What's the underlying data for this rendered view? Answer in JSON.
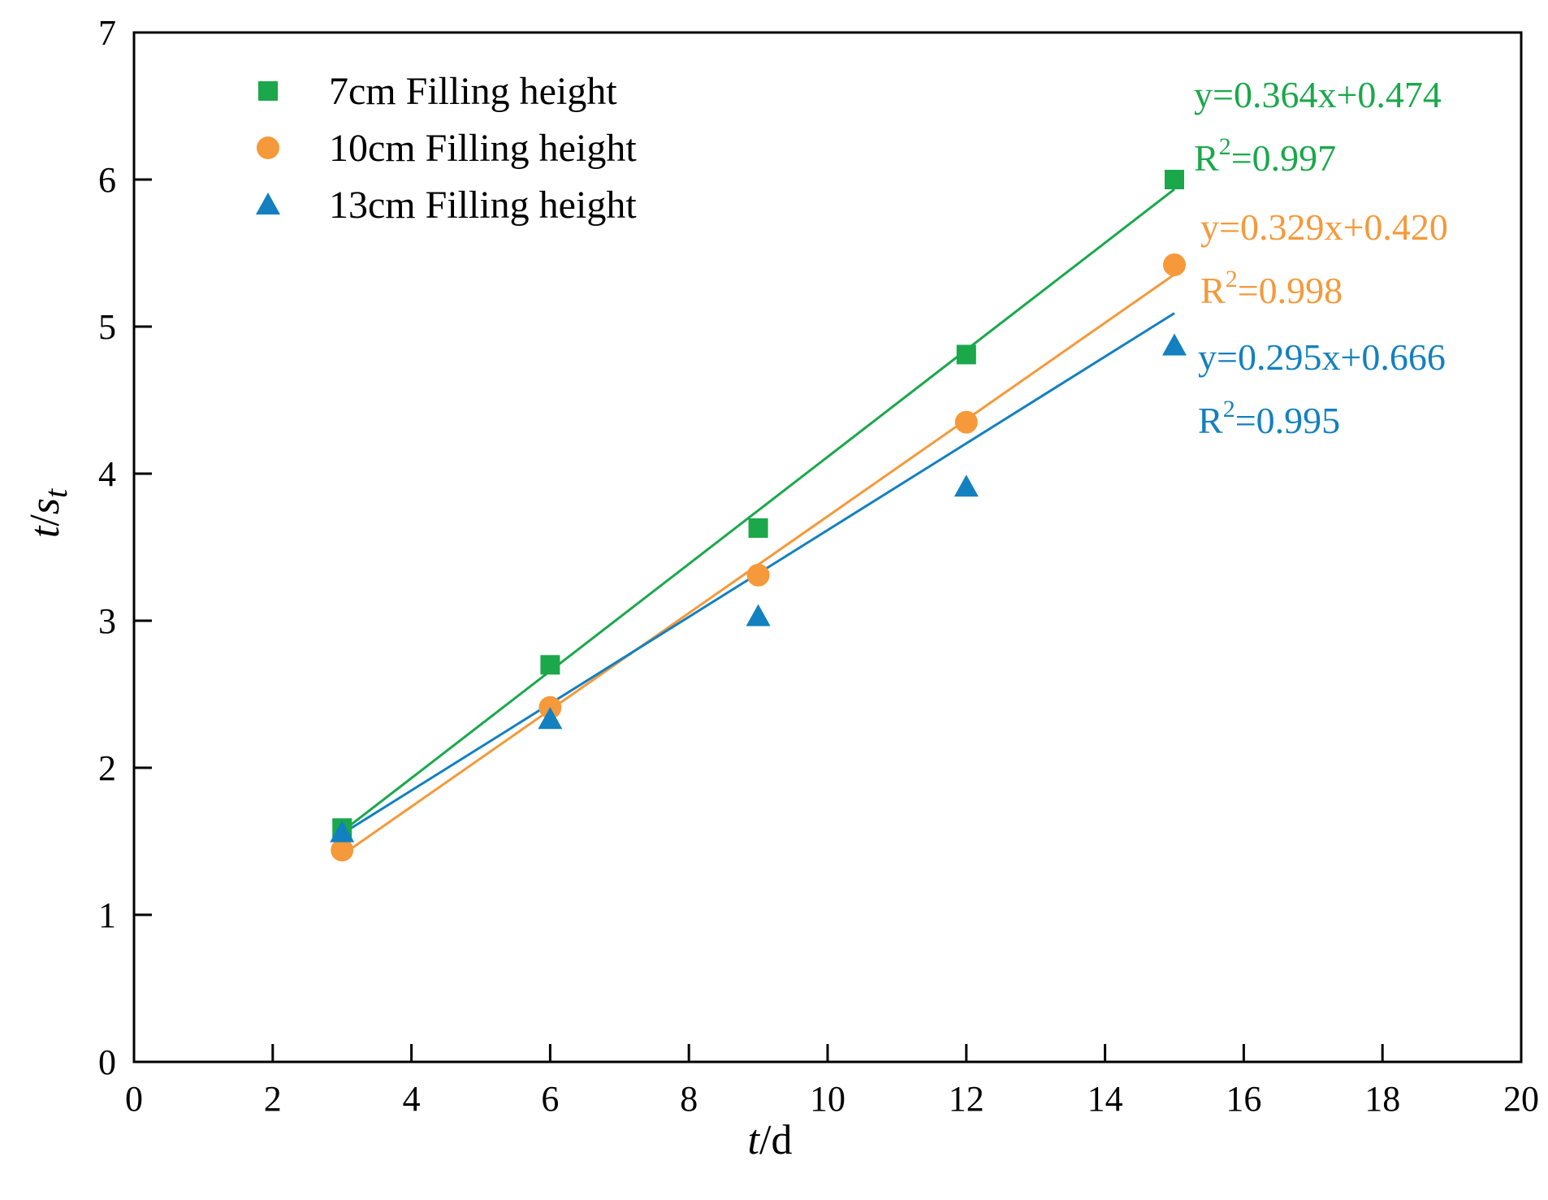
{
  "chart_data": {
    "type": "scatter",
    "title": "",
    "xlabel_italic": "t",
    "xlabel_rest": "/d",
    "ylabel_italic": "t",
    "ylabel_sep": "/",
    "ylabel_sym": "s",
    "ylabel_sub": "t",
    "xlim": [
      0,
      20
    ],
    "ylim": [
      0,
      7
    ],
    "xticks": [
      0,
      2,
      4,
      6,
      8,
      10,
      12,
      14,
      16,
      18,
      20
    ],
    "yticks": [
      0,
      1,
      2,
      3,
      4,
      5,
      6,
      7
    ],
    "grid": false,
    "legend_position": "top-left",
    "series": [
      {
        "name": "7cm Filling height",
        "marker": "square",
        "color": "#1aa84b",
        "x": [
          3,
          6,
          9,
          12,
          15
        ],
        "y": [
          1.59,
          2.7,
          3.63,
          4.81,
          6.0
        ],
        "fit": {
          "slope": 0.364,
          "intercept": 0.474,
          "x_range": [
            3,
            15
          ]
        },
        "equation": "y=0.364x+0.474",
        "r2_prefix": "R",
        "r2_exp": "2",
        "r2_value": "=0.997"
      },
      {
        "name": "10cm Filling height",
        "marker": "circle",
        "color": "#f5993a",
        "x": [
          3,
          6,
          9,
          12,
          15
        ],
        "y": [
          1.44,
          2.41,
          3.31,
          4.35,
          5.42
        ],
        "fit": {
          "slope": 0.329,
          "intercept": 0.42,
          "x_range": [
            3,
            15
          ]
        },
        "equation": "y=0.329x+0.420",
        "r2_prefix": "R",
        "r2_exp": "2",
        "r2_value": "=0.998"
      },
      {
        "name": "13cm Filling height",
        "marker": "triangle",
        "color": "#1380c0",
        "x": [
          3,
          6,
          9,
          12,
          15
        ],
        "y": [
          1.56,
          2.33,
          3.03,
          3.91,
          4.87
        ],
        "fit": {
          "slope": 0.295,
          "intercept": 0.666,
          "x_range": [
            3,
            15
          ]
        },
        "equation": "y=0.295x+0.666",
        "r2_prefix": "R",
        "r2_exp": "2",
        "r2_value": "=0.995"
      }
    ]
  }
}
